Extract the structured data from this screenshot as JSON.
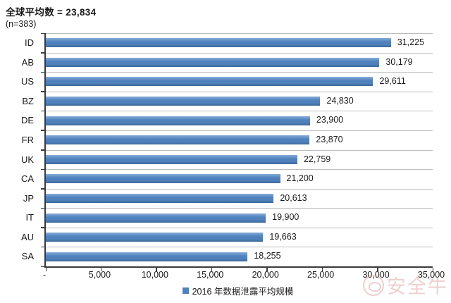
{
  "header": {
    "title": "全球平均数 = 23,834",
    "sample_size": "(n=383)"
  },
  "chart_data": {
    "type": "bar",
    "orientation": "horizontal",
    "title": "全球平均数 = 23,834",
    "subtitle": "(n=383)",
    "categories": [
      "ID",
      "AB",
      "US",
      "BZ",
      "DE",
      "FR",
      "UK",
      "CA",
      "JP",
      "IT",
      "AU",
      "SA"
    ],
    "values": [
      31225,
      30179,
      29611,
      24830,
      23900,
      23870,
      22759,
      21200,
      20613,
      19900,
      19663,
      18255
    ],
    "value_labels": [
      "31,225",
      "30,179",
      "29,611",
      "24,830",
      "23,900",
      "23,870",
      "22,759",
      "21,200",
      "20,613",
      "19,900",
      "19,663",
      "18,255"
    ],
    "xlim": [
      0,
      35000
    ],
    "x_tick_values": [
      0,
      5000,
      10000,
      15000,
      20000,
      25000,
      30000,
      35000
    ],
    "x_tick_labels": [
      "-",
      "5,000",
      "10,000",
      "15,000",
      "20,000",
      "25,000",
      "30,000",
      "35,000"
    ],
    "legend": "2016 年数据泄露平均规模",
    "legend_position": "bottom-center",
    "grid": true,
    "bar_color": "#4f81bd",
    "gridline_color": "#bdbdbd",
    "axis_color": "#3a3a3a"
  },
  "watermark": {
    "text": "安全牛",
    "logo": "ox-head-circle-logo",
    "color": "#d99694"
  }
}
